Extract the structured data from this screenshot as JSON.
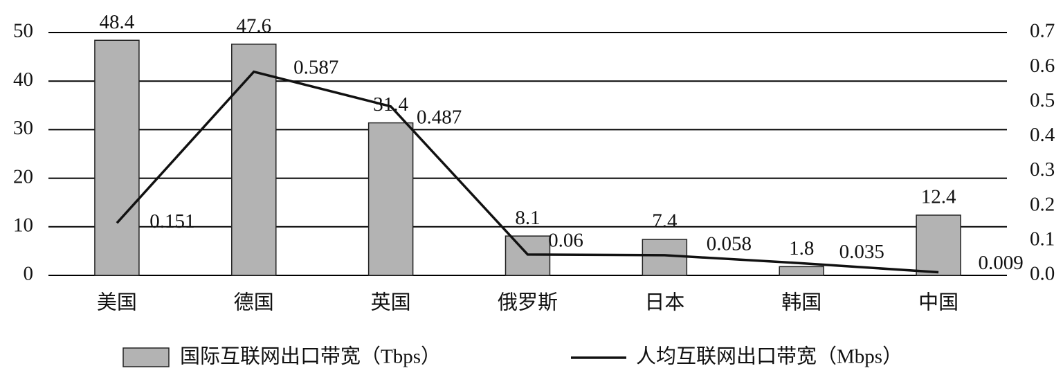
{
  "chart_data": {
    "type": "bar",
    "categories": [
      "美国",
      "德国",
      "英国",
      "俄罗斯",
      "日本",
      "韩国",
      "中国"
    ],
    "series": [
      {
        "name": "国际互联网出口带宽（Tbps）",
        "type": "bar",
        "color": "#b3b3b3",
        "values": [
          48.4,
          47.6,
          31.4,
          8.1,
          7.4,
          1.8,
          12.4
        ]
      },
      {
        "name": "人均互联网出口带宽（Mbps）",
        "type": "line",
        "axis": "y2",
        "color": "#111111",
        "values": [
          0.151,
          0.587,
          0.487,
          0.06,
          0.058,
          0.035,
          0.009
        ]
      }
    ],
    "ylim": [
      0,
      50
    ],
    "yticks": [
      0,
      10,
      20,
      30,
      40,
      50
    ],
    "y2lim": [
      0,
      0.7
    ],
    "y2ticks": [
      {
        "value": 0,
        "label": "0.0"
      },
      0.1,
      0.2,
      0.3,
      0.4,
      0.5,
      0.6,
      0.7
    ],
    "grid": true,
    "legend": "bottom"
  }
}
